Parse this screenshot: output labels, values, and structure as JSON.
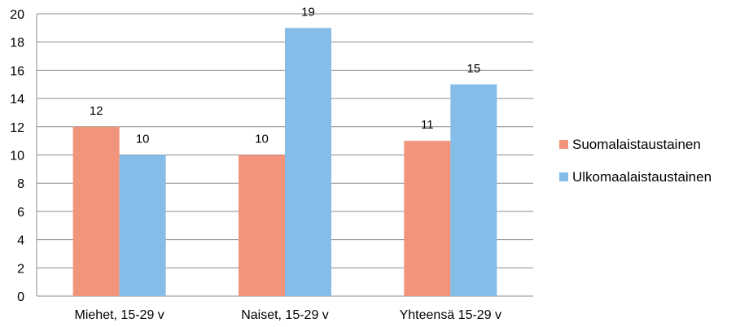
{
  "chart_data": {
    "type": "bar",
    "categories": [
      "Miehet, 15-29 v",
      "Naiset, 15-29 v",
      "Yhteensä 15-29 v"
    ],
    "series": [
      {
        "name": "Suomalaistaustainen",
        "values": [
          12,
          10,
          11
        ],
        "color": "#F2937B"
      },
      {
        "name": "Ulkomaalaistaustainen",
        "values": [
          10,
          19,
          15
        ],
        "color": "#85BCE8"
      }
    ],
    "data_labels": [
      [
        "12",
        "10",
        "11"
      ],
      [
        "10",
        "19",
        "15"
      ]
    ],
    "ylim": [
      0,
      20
    ],
    "yticks": [
      0,
      2,
      4,
      6,
      8,
      10,
      12,
      14,
      16,
      18,
      20
    ],
    "grid": true,
    "legend_position": "right",
    "title": "",
    "xlabel": "",
    "ylabel": ""
  }
}
